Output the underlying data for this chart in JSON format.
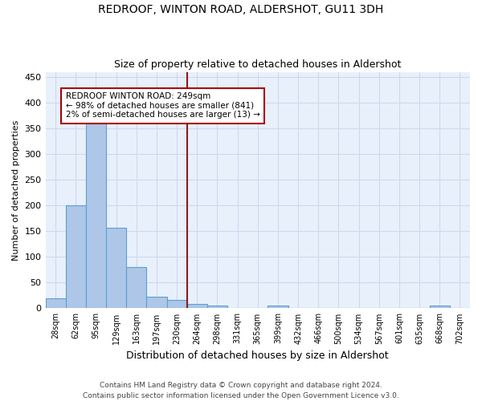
{
  "title": "REDROOF, WINTON ROAD, ALDERSHOT, GU11 3DH",
  "subtitle": "Size of property relative to detached houses in Aldershot",
  "xlabel": "Distribution of detached houses by size in Aldershot",
  "ylabel": "Number of detached properties",
  "footer": "Contains HM Land Registry data © Crown copyright and database right 2024.\nContains public sector information licensed under the Open Government Licence v3.0.",
  "bin_labels": [
    "28sqm",
    "62sqm",
    "95sqm",
    "129sqm",
    "163sqm",
    "197sqm",
    "230sqm",
    "264sqm",
    "298sqm",
    "331sqm",
    "365sqm",
    "399sqm",
    "432sqm",
    "466sqm",
    "500sqm",
    "534sqm",
    "567sqm",
    "601sqm",
    "635sqm",
    "668sqm",
    "702sqm"
  ],
  "bar_values": [
    19,
    201,
    367,
    156,
    80,
    23,
    16,
    8,
    6,
    0,
    0,
    6,
    0,
    0,
    0,
    0,
    0,
    0,
    0,
    5,
    0
  ],
  "bar_color": "#aec6e8",
  "bar_edge_color": "#5a9fd4",
  "background_color": "#e8f0fb",
  "grid_color": "#d0d8ee",
  "vline_x_index": 7,
  "vline_color": "#8b1a1a",
  "annotation_line1": "REDROOF WINTON ROAD: 249sqm",
  "annotation_line2": "← 98% of detached houses are smaller (841)",
  "annotation_line3": "2% of semi-detached houses are larger (13) →",
  "annotation_box_color": "#aa0000",
  "ylim": [
    0,
    460
  ],
  "yticks": [
    0,
    50,
    100,
    150,
    200,
    250,
    300,
    350,
    400,
    450
  ],
  "title_fontsize": 10,
  "subtitle_fontsize": 9
}
